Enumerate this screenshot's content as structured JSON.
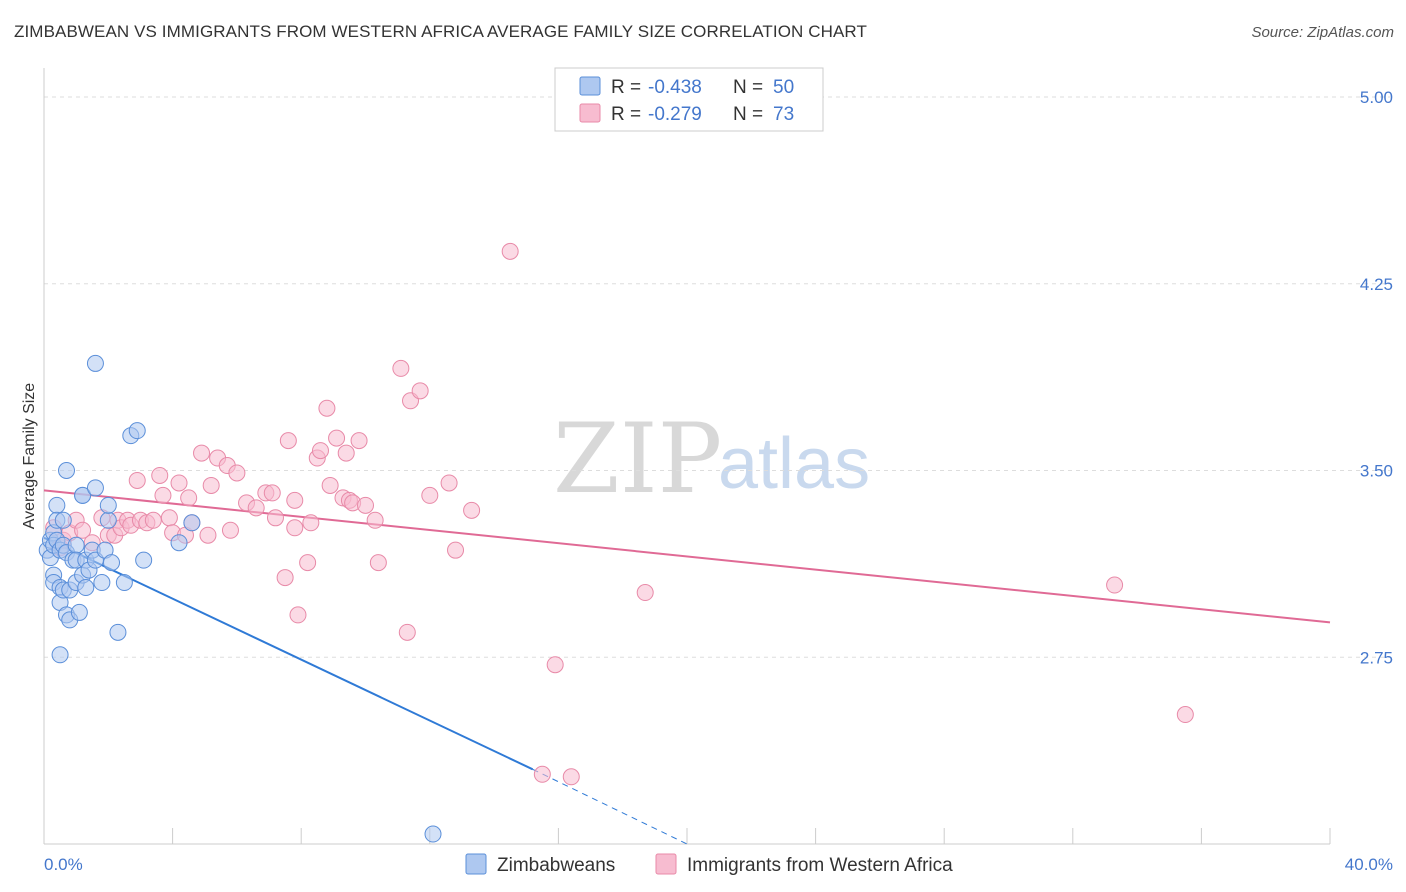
{
  "title": "ZIMBABWEAN VS IMMIGRANTS FROM WESTERN AFRICA AVERAGE FAMILY SIZE CORRELATION CHART",
  "source": "Source: ZipAtlas.com",
  "watermark": {
    "zip": "ZIP",
    "atlas": "atlas"
  },
  "colors": {
    "blue_fill": "#aec8f0",
    "blue_stroke": "#5b8fd9",
    "blue_line": "#2f7ad6",
    "pink_fill": "#f7bcd0",
    "pink_stroke": "#e88aa8",
    "pink_line": "#e06a95",
    "axis_text": "#4477cc",
    "grid": "#dddddd"
  },
  "legend": {
    "r_label": "R =",
    "n_label": "N =",
    "rows": [
      {
        "r": "-0.438",
        "n": "50"
      },
      {
        "r": "-0.279",
        "n": "73"
      }
    ]
  },
  "chart_data": {
    "type": "scatter",
    "title": "ZIMBABWEAN VS IMMIGRANTS FROM WESTERN AFRICA AVERAGE FAMILY SIZE CORRELATION CHART",
    "xlabel": "",
    "ylabel": "Average Family Size",
    "xlim": [
      0,
      40
    ],
    "ylim": [
      2.0,
      5.0
    ],
    "x_tick_labels": [
      "0.0%",
      "40.0%"
    ],
    "y_ticks": [
      2.75,
      3.5,
      4.25,
      5.0
    ],
    "y_tick_labels": [
      "2.75",
      "3.50",
      "4.25",
      "5.00"
    ],
    "grid": true,
    "legend_position": "top-center",
    "series": [
      {
        "name": "Zimbabweans",
        "points": [
          [
            0.1,
            3.18
          ],
          [
            0.2,
            3.22
          ],
          [
            0.2,
            3.15
          ],
          [
            0.3,
            3.25
          ],
          [
            0.3,
            3.08
          ],
          [
            0.3,
            3.05
          ],
          [
            0.3,
            3.2
          ],
          [
            0.4,
            3.36
          ],
          [
            0.4,
            3.3
          ],
          [
            0.4,
            3.22
          ],
          [
            0.5,
            3.18
          ],
          [
            0.5,
            3.03
          ],
          [
            0.5,
            2.97
          ],
          [
            0.5,
            2.76
          ],
          [
            0.6,
            3.3
          ],
          [
            0.6,
            3.2
          ],
          [
            0.6,
            3.02
          ],
          [
            0.7,
            3.17
          ],
          [
            0.7,
            2.92
          ],
          [
            0.7,
            3.5
          ],
          [
            0.8,
            3.02
          ],
          [
            0.8,
            2.9
          ],
          [
            0.9,
            3.14
          ],
          [
            1.0,
            3.2
          ],
          [
            1.0,
            3.05
          ],
          [
            1.0,
            3.14
          ],
          [
            1.1,
            2.93
          ],
          [
            1.2,
            3.4
          ],
          [
            1.2,
            3.4
          ],
          [
            1.2,
            3.08
          ],
          [
            1.3,
            3.03
          ],
          [
            1.3,
            3.14
          ],
          [
            1.4,
            3.1
          ],
          [
            1.5,
            3.18
          ],
          [
            1.6,
            3.43
          ],
          [
            1.6,
            3.14
          ],
          [
            1.8,
            3.05
          ],
          [
            1.9,
            3.18
          ],
          [
            2.0,
            3.3
          ],
          [
            2.0,
            3.36
          ],
          [
            2.1,
            3.13
          ],
          [
            2.3,
            2.85
          ],
          [
            2.5,
            3.05
          ],
          [
            2.7,
            3.64
          ],
          [
            2.9,
            3.66
          ],
          [
            1.6,
            3.93
          ],
          [
            3.1,
            3.14
          ],
          [
            4.2,
            3.21
          ],
          [
            4.6,
            3.29
          ],
          [
            12.1,
            2.04
          ]
        ],
        "trend": {
          "x": [
            0.0,
            15.2
          ],
          "y": [
            3.23,
            2.3
          ]
        },
        "trend_extension": {
          "x": [
            15.2,
            20.0
          ],
          "y": [
            2.3,
            2.0
          ]
        }
      },
      {
        "name": "Immigrants from Western Africa",
        "points": [
          [
            0.3,
            3.27
          ],
          [
            0.5,
            3.19
          ],
          [
            0.6,
            3.22
          ],
          [
            0.8,
            3.25
          ],
          [
            1.0,
            3.3
          ],
          [
            1.2,
            3.26
          ],
          [
            1.5,
            3.21
          ],
          [
            1.8,
            3.31
          ],
          [
            2.0,
            3.24
          ],
          [
            2.2,
            3.24
          ],
          [
            2.3,
            3.3
          ],
          [
            2.4,
            3.27
          ],
          [
            2.6,
            3.3
          ],
          [
            2.7,
            3.28
          ],
          [
            2.9,
            3.46
          ],
          [
            3.0,
            3.3
          ],
          [
            3.2,
            3.29
          ],
          [
            3.4,
            3.3
          ],
          [
            3.6,
            3.48
          ],
          [
            3.7,
            3.4
          ],
          [
            3.9,
            3.31
          ],
          [
            4.0,
            3.25
          ],
          [
            4.2,
            3.45
          ],
          [
            4.4,
            3.24
          ],
          [
            4.5,
            3.39
          ],
          [
            4.6,
            3.29
          ],
          [
            4.9,
            3.57
          ],
          [
            5.1,
            3.24
          ],
          [
            5.2,
            3.44
          ],
          [
            5.4,
            3.55
          ],
          [
            5.7,
            3.52
          ],
          [
            5.8,
            3.26
          ],
          [
            6.0,
            3.49
          ],
          [
            6.3,
            3.37
          ],
          [
            6.6,
            3.35
          ],
          [
            6.9,
            3.41
          ],
          [
            7.1,
            3.41
          ],
          [
            7.5,
            3.07
          ],
          [
            7.6,
            3.62
          ],
          [
            7.8,
            3.38
          ],
          [
            7.9,
            2.92
          ],
          [
            7.8,
            3.27
          ],
          [
            8.2,
            3.13
          ],
          [
            8.3,
            3.29
          ],
          [
            8.5,
            3.55
          ],
          [
            8.6,
            3.58
          ],
          [
            8.8,
            3.75
          ],
          [
            8.9,
            3.44
          ],
          [
            9.1,
            3.63
          ],
          [
            9.3,
            3.39
          ],
          [
            9.4,
            3.57
          ],
          [
            9.5,
            3.38
          ],
          [
            9.6,
            3.37
          ],
          [
            9.8,
            3.62
          ],
          [
            10.0,
            3.36
          ],
          [
            10.3,
            3.3
          ],
          [
            10.4,
            3.13
          ],
          [
            11.1,
            3.91
          ],
          [
            11.3,
            2.85
          ],
          [
            11.4,
            3.78
          ],
          [
            11.7,
            3.82
          ],
          [
            12.0,
            3.4
          ],
          [
            12.6,
            3.45
          ],
          [
            12.8,
            3.18
          ],
          [
            13.3,
            3.34
          ],
          [
            14.5,
            4.38
          ],
          [
            15.5,
            2.28
          ],
          [
            15.9,
            2.72
          ],
          [
            16.4,
            2.27
          ],
          [
            18.7,
            3.01
          ],
          [
            33.3,
            3.04
          ],
          [
            35.5,
            2.52
          ],
          [
            7.2,
            3.31
          ]
        ],
        "trend": {
          "x": [
            0.0,
            40.0
          ],
          "y": [
            3.42,
            2.89
          ]
        }
      }
    ]
  },
  "bottom_legend": {
    "items": [
      "Zimbabweans",
      "Immigrants from Western Africa"
    ]
  }
}
